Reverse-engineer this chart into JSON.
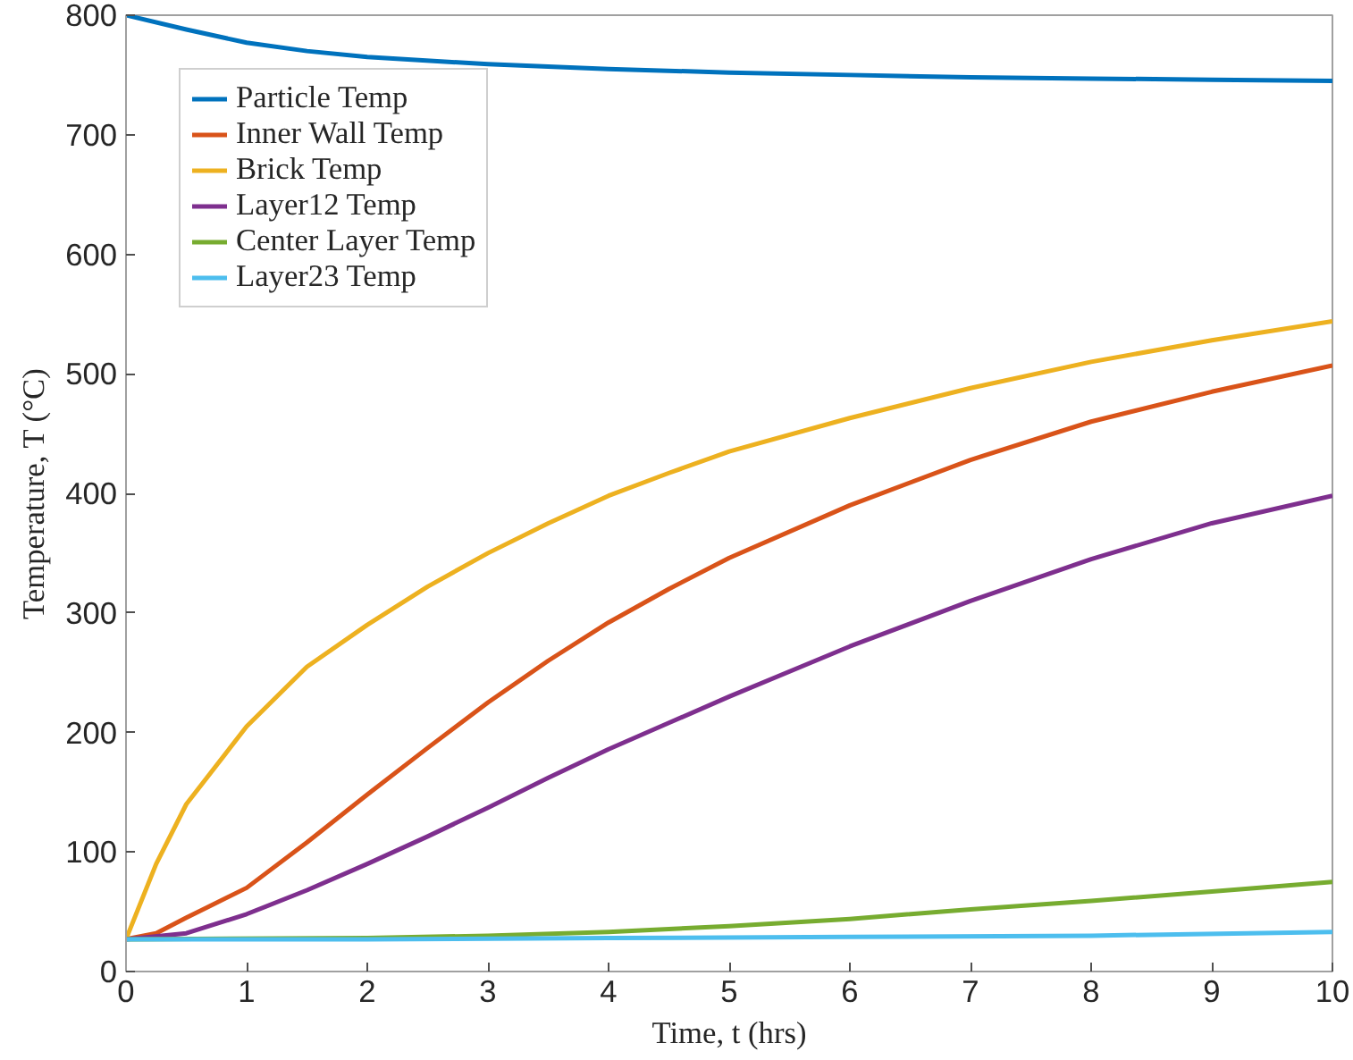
{
  "chart_data": {
    "type": "line",
    "xlabel": "Time, t (hrs)",
    "ylabel": "Temperature, T (°C)",
    "xlim": [
      0,
      10
    ],
    "ylim": [
      0,
      800
    ],
    "xticks": [
      0,
      1,
      2,
      3,
      4,
      5,
      6,
      7,
      8,
      9,
      10
    ],
    "yticks": [
      0,
      100,
      200,
      300,
      400,
      500,
      600,
      700,
      800
    ],
    "grid": false,
    "legend": "top left",
    "line_style": "solid",
    "series": [
      {
        "name": "Particle Temp",
        "color": "#0072bd",
        "x": [
          0,
          0.5,
          1,
          1.5,
          2,
          3,
          4,
          5,
          6,
          7,
          8,
          9,
          10
        ],
        "values": [
          800,
          788,
          777,
          770,
          765,
          759,
          755,
          752,
          750,
          748,
          747,
          746,
          745
        ]
      },
      {
        "name": "Inner Wall Temp",
        "color": "#d95319",
        "x": [
          0,
          0.25,
          0.5,
          1,
          1.5,
          2,
          2.5,
          3,
          3.5,
          4,
          4.5,
          5,
          6,
          7,
          8,
          9,
          10
        ],
        "values": [
          27,
          32,
          45,
          70,
          108,
          148,
          187,
          225,
          260,
          292,
          320,
          346,
          390,
          428,
          460,
          485,
          507
        ]
      },
      {
        "name": "Brick Temp",
        "color": "#edb120",
        "x": [
          0,
          0.25,
          0.5,
          1,
          1.5,
          2,
          2.5,
          3,
          3.5,
          4,
          4.5,
          5,
          6,
          7,
          8,
          9,
          10
        ],
        "values": [
          27,
          90,
          140,
          205,
          255,
          290,
          322,
          350,
          375,
          398,
          417,
          435,
          463,
          488,
          510,
          528,
          544
        ]
      },
      {
        "name": "Layer12 Temp",
        "color": "#7e2f8e",
        "x": [
          0,
          0.5,
          1,
          1.5,
          2,
          2.5,
          3,
          3.5,
          4,
          4.5,
          5,
          6,
          7,
          8,
          9,
          10
        ],
        "values": [
          27,
          32,
          48,
          68,
          90,
          113,
          137,
          162,
          186,
          208,
          230,
          272,
          310,
          345,
          375,
          398
        ]
      },
      {
        "name": "Center Layer Temp",
        "color": "#77ac30",
        "x": [
          0,
          2,
          3,
          4,
          5,
          6,
          7,
          8,
          9,
          10
        ],
        "values": [
          27,
          28,
          30,
          33,
          38,
          44,
          52,
          59,
          67,
          75
        ]
      },
      {
        "name": "Layer23 Temp",
        "color": "#4dbeee",
        "x": [
          0,
          2,
          4,
          6,
          8,
          10
        ],
        "values": [
          27,
          27,
          28,
          29,
          30,
          33
        ]
      }
    ]
  }
}
